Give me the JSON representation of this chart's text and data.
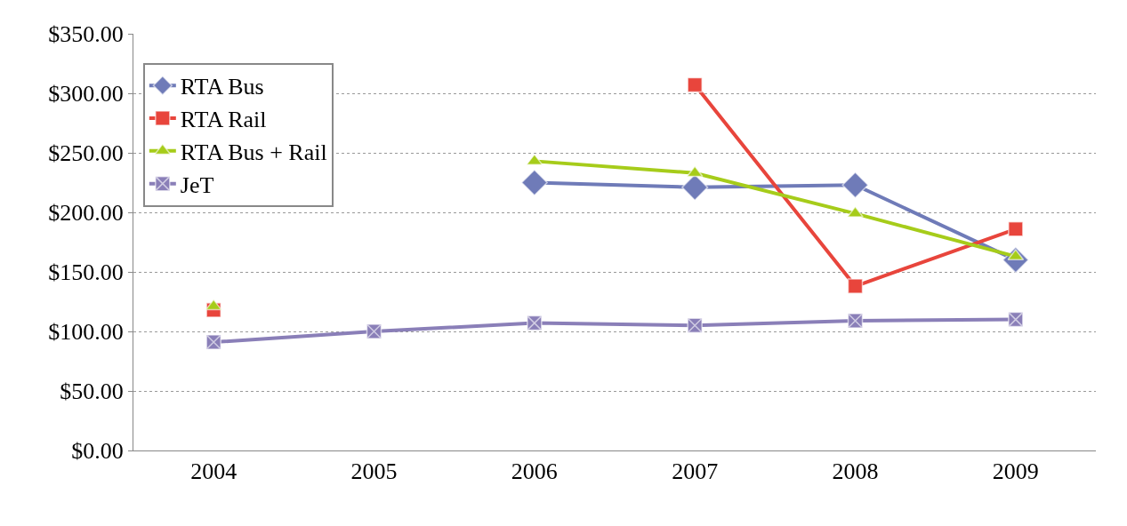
{
  "chart_data": {
    "type": "line",
    "categories": [
      "2004",
      "2005",
      "2006",
      "2007",
      "2008",
      "2009"
    ],
    "series": [
      {
        "name": "RTA Bus",
        "color": "#6f7bb8",
        "marker": "diamond",
        "values": [
          null,
          null,
          225,
          221,
          223,
          160
        ]
      },
      {
        "name": "RTA Rail",
        "color": "#e8453c",
        "marker": "square",
        "values": [
          118,
          null,
          null,
          307,
          138,
          186
        ]
      },
      {
        "name": "RTA Bus + Rail",
        "color": "#a6cc1a",
        "marker": "triangle",
        "values": [
          121,
          null,
          243,
          233,
          199,
          163
        ]
      },
      {
        "name": "JeT",
        "color": "#8a7fb8",
        "marker": "cross",
        "values": [
          91,
          100,
          107,
          105,
          109,
          110
        ]
      }
    ],
    "ylim": [
      0,
      350
    ],
    "yticks": [
      {
        "value": 0,
        "label": "$0.00"
      },
      {
        "value": 50,
        "label": "$50.00"
      },
      {
        "value": 100,
        "label": "$100.00"
      },
      {
        "value": 150,
        "label": "$150.00"
      },
      {
        "value": 200,
        "label": "$200.00"
      },
      {
        "value": 250,
        "label": "$250.00"
      },
      {
        "value": 300,
        "label": "$300.00"
      },
      {
        "value": 350,
        "label": "$350.00"
      }
    ],
    "grid": "y",
    "legend": "top left",
    "line_style": "solid"
  }
}
